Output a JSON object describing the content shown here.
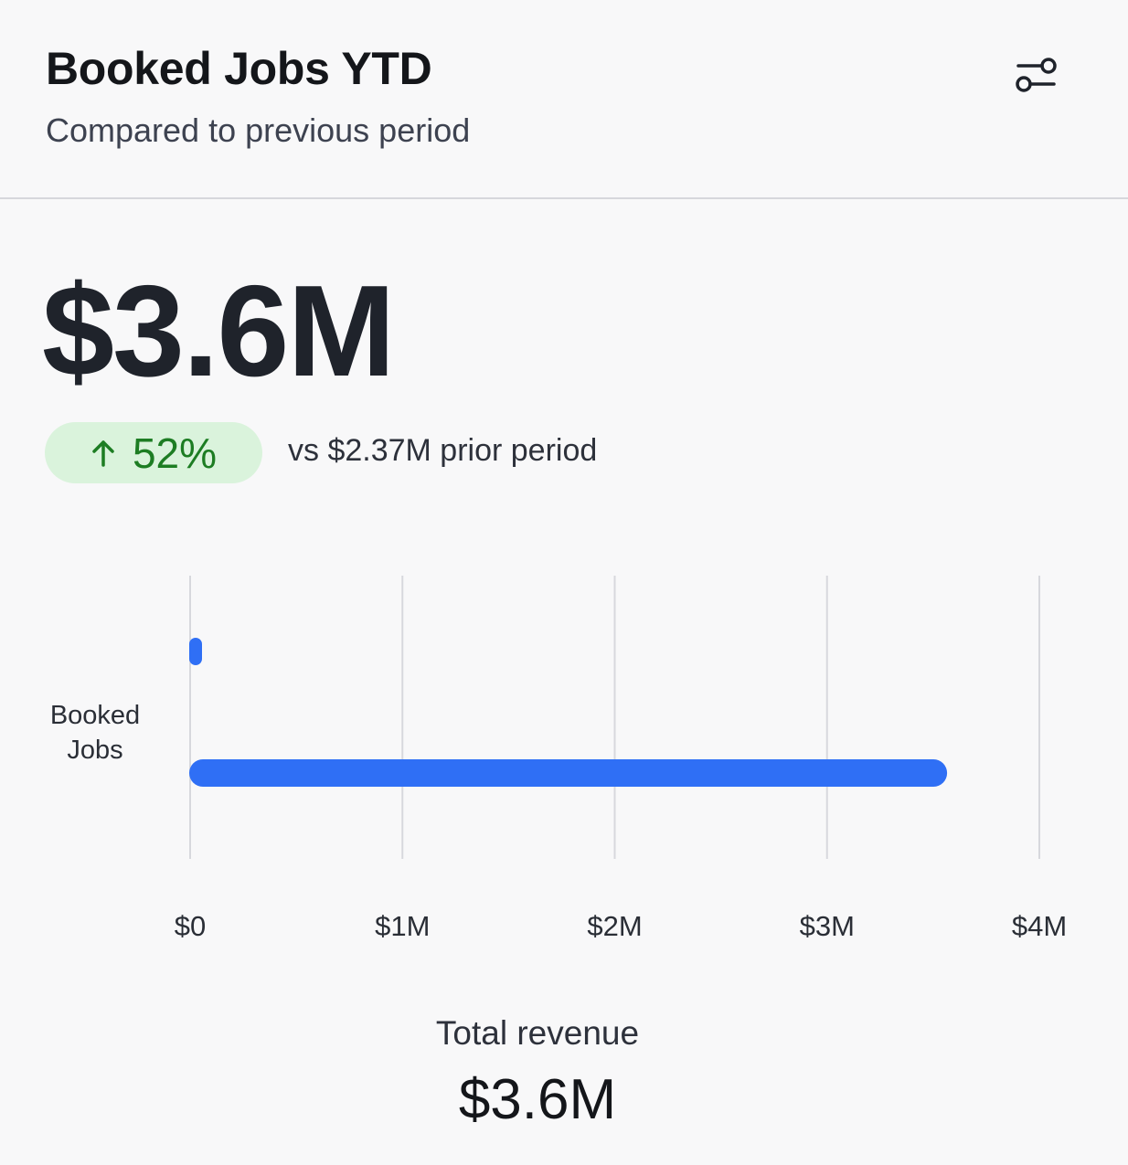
{
  "header": {
    "title": "Booked Jobs YTD",
    "subtitle": "Compared to previous period",
    "filter_icon": "sliders-icon"
  },
  "kpi": {
    "value": "$3.6M",
    "change": "52%",
    "change_direction": "up",
    "change_icon": "arrow-up-icon",
    "comparison": "vs $2.37M prior period"
  },
  "colors": {
    "accent": "#2f6ff5",
    "positive_text": "#1d7d23",
    "positive_bg": "#daf3dc",
    "grid": "#d7d8dd"
  },
  "chart_data": {
    "type": "bar",
    "orientation": "horizontal",
    "categories": [
      "Booked Jobs"
    ],
    "series": [
      {
        "values": [
          0.03
        ]
      },
      {
        "values": [
          3.6
        ]
      }
    ],
    "x_ticks": [
      "$0",
      "$1M",
      "$2M",
      "$3M",
      "$4M"
    ],
    "xlim": [
      0,
      4
    ],
    "x_unit": "M$",
    "grid": true
  },
  "footer": {
    "label": "Total revenue",
    "value": "$3.6M"
  }
}
